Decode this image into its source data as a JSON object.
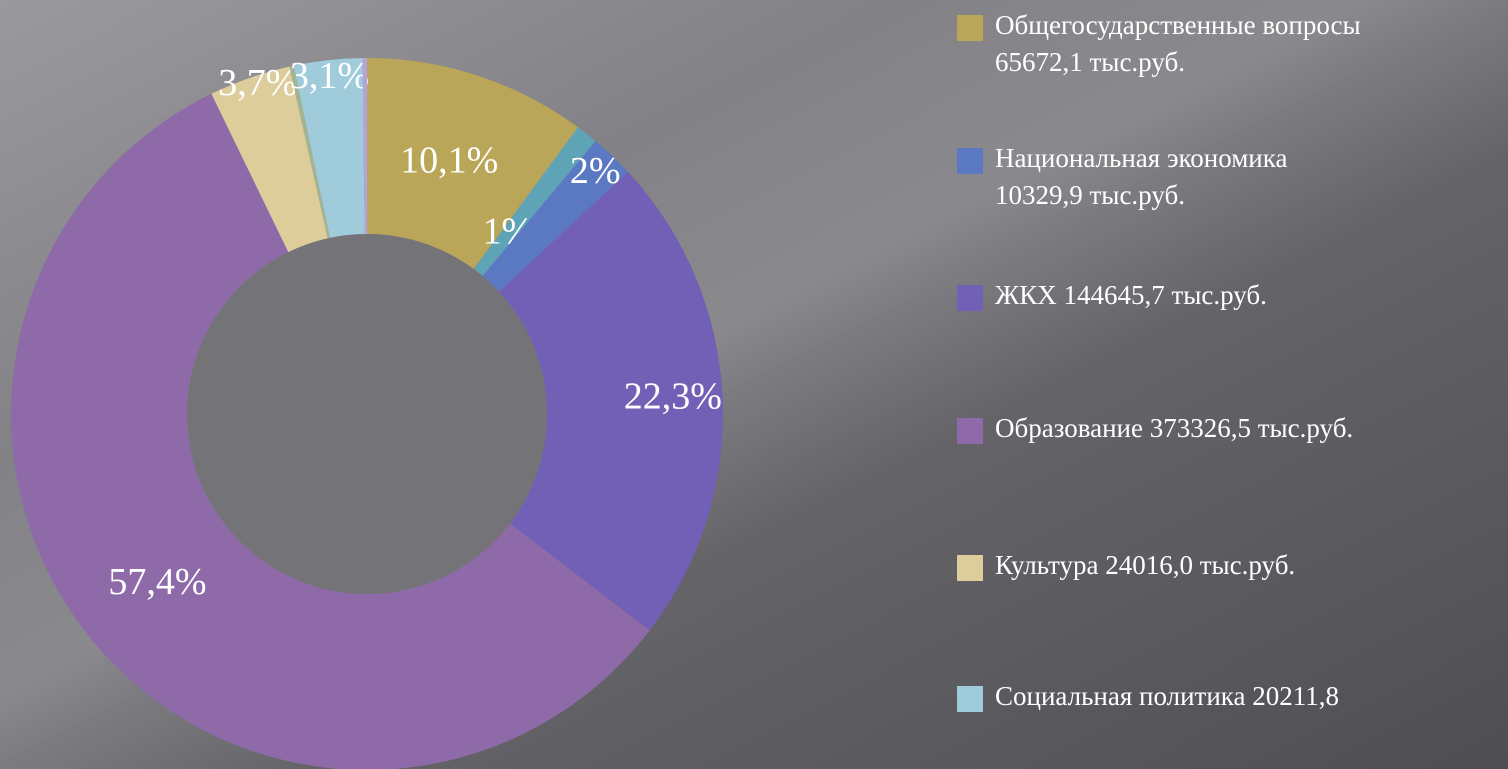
{
  "chart_data": {
    "type": "donut",
    "values": [
      10.1,
      1,
      2,
      22.3,
      57.4,
      3.7,
      0.2,
      3.1,
      0.2
    ],
    "value_labels": [
      "10,1%",
      "1%",
      "2%",
      "22,3%",
      "57,4%",
      "3,7%",
      null,
      "3,1%",
      null
    ],
    "colors": [
      "#b9a659",
      "#5ea3b6",
      "#5b78c3",
      "#7160b5",
      "#8e6ba8",
      "#dccd9b",
      "#a3b493",
      "#9fcbdb",
      "#b3a3dc"
    ],
    "legend": [
      {
        "lines": [
          "Общегосударственные вопросы",
          "65672,1 тыс.руб."
        ],
        "color": "#b9a659"
      },
      {
        "lines": [
          "Национальная экономика",
          "10329,9 тыс.руб."
        ],
        "color": "#5b78c3"
      },
      {
        "lines": [
          "ЖКХ 144645,7 тыс.руб."
        ],
        "color": "#7160b5"
      },
      {
        "lines": [
          "Образование 373326,5 тыс.руб."
        ],
        "color": "#8e6ba8"
      },
      {
        "lines": [
          "Культура 24016,0 тыс.руб."
        ],
        "color": "#dccd9b"
      },
      {
        "lines": [
          "Социальная политика 20211,8"
        ],
        "color": "#9fcbdb"
      }
    ]
  }
}
